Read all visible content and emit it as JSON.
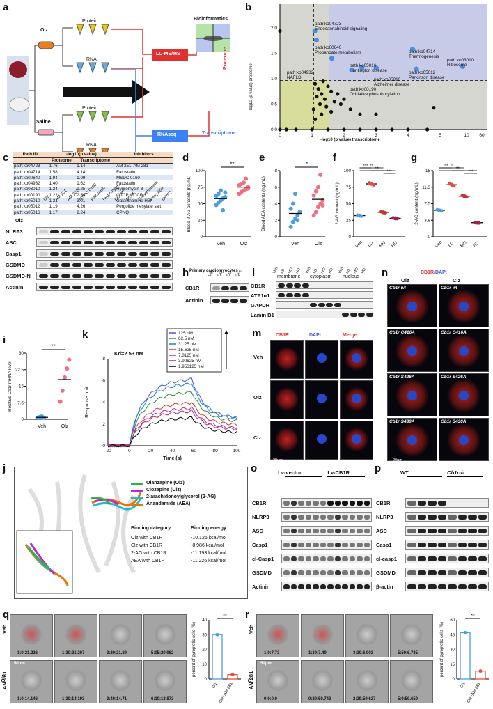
{
  "panels": {
    "a": {
      "letter": "a",
      "olz": "Olz",
      "saline": "Saline",
      "protein": "Protein",
      "rna": "RNA",
      "bioinfo": "Bioinformatics",
      "lcms": "LC-MS/MS",
      "rnaseq": "RNAseq",
      "proteome": "Proteome",
      "transcriptome": "Transcriptome"
    },
    "b": {
      "letter": "b",
      "ylabel": "-log10 (p value) proteome",
      "xlabel": "-log10 (p value) transcriptome",
      "xticks": [
        "0",
        "1",
        "2",
        "3",
        "4",
        "5",
        "10",
        "60"
      ],
      "yticks": [
        "0.0",
        "0.5",
        "1.0",
        "1.5",
        "2.0"
      ],
      "annotations": [
        "path:ko04723\nEndocannabinoid signaling",
        "path:ko00640\nPropanoate metabolism",
        "path:ko05016\nHuntington disease",
        "path:ko04932\nNAFLD",
        "path:ko00190\nOxidative phosphorylation",
        "path:ko05010\nAlzheimer disease",
        "path:ko04714\nThermogenesis",
        "path:ko05012\nParkinson disease",
        "path:ko03010\nRibosome"
      ]
    },
    "c": {
      "letter": "c",
      "headers": [
        "Path ID",
        "-log10(p value)",
        "Inhibitors"
      ],
      "subheaders": [
        "Proteome",
        "Transcriptome"
      ],
      "rows": [
        [
          "path:ko04723",
          "1.76",
          "1.14",
          "AM 251, AM 281"
        ],
        [
          "path:ko04714",
          "1.58",
          "4.14",
          "Fatostatin"
        ],
        [
          "path:ko00640",
          "1.94",
          "1.09",
          "MSDC 0160"
        ],
        [
          "path:ko04932",
          "1.40",
          "1.62",
          "Fatostatin"
        ],
        [
          "path:ko03010",
          "1.24",
          "9.25",
          "Hygromycin B"
        ],
        [
          "path:ko00190",
          "1.22",
          "2.56",
          "CCCP; FCCP"
        ],
        [
          "path:ko05010",
          "1.21",
          "3.01",
          "Galanthamine HBr"
        ],
        [
          "path:ko05012",
          "1.19",
          "4.26",
          "Pergolide mesylate salt"
        ],
        [
          "path:ko05016",
          "1.17",
          "2.24",
          "CPNQ"
        ]
      ],
      "blot_cols": [
        "Olz",
        "AM 251",
        "AM 281",
        "MSDC 0160",
        "Fatostatin",
        "Hygromycin",
        "CCCP",
        "FCCP",
        "Galanthamine",
        "Pergolide",
        "CPNQ"
      ],
      "blot_rows": [
        "NLRP3",
        "ASC",
        "Casp1",
        "GSDMD",
        "GSDMD-N",
        "Actinin"
      ],
      "olz_label": "Olz"
    },
    "d": {
      "letter": "d",
      "ylabel": "Blood 2-AG contents (ng.mL)",
      "sig": "**",
      "xcats": [
        "Veh",
        "Olz"
      ]
    },
    "e": {
      "letter": "e",
      "ylabel": "Blood AEA contents (ng.mL)",
      "sig": "*",
      "xcats": [
        "Veh",
        "Olz"
      ]
    },
    "f": {
      "letter": "f",
      "ylabel": "2-AG content (ng/mL)",
      "xcats": [
        "Veh",
        "LD",
        "MD",
        "HD"
      ]
    },
    "g": {
      "letter": "g",
      "ylabel": "2-AG content (ng/mL)",
      "xcats": [
        "Veh",
        "LD",
        "MD",
        "HD"
      ]
    },
    "h": {
      "letter": "h",
      "title": "Primary cardiomyocytes",
      "cols": [
        "Veh",
        "Olz",
        "Clz",
        "Que"
      ],
      "rows": [
        "CB1R",
        "Actinin"
      ]
    },
    "i": {
      "letter": "i",
      "ylabel": "Relative Cb1r mRNA level",
      "sig": "**",
      "xcats": [
        "Veh",
        "Olz"
      ]
    },
    "k": {
      "letter": "k",
      "kd": "Kd=2.53 nM",
      "xlabel": "Time (s)",
      "ylabel": "Response unit",
      "legend": [
        "125 nM",
        "62.5 nM",
        "31.25 nM",
        "15.625 nM",
        "7.8125 nM",
        "3.90625 nM",
        "1.953125 nM"
      ],
      "colors": [
        "#3b5bdb",
        "#2b8a3e",
        "#1c7ed6",
        "#e03131",
        "#9c36b5",
        "#c2255c",
        "#000000"
      ],
      "xticks": [
        "-20",
        "0",
        "20",
        "40",
        "60",
        "80",
        "100"
      ],
      "yticks": [
        "0",
        "2",
        "4",
        "6",
        "8"
      ]
    },
    "l": {
      "letter": "l",
      "groups": [
        "membrane",
        "cytoplasm",
        "nucleus"
      ],
      "rows": [
        "CB1R",
        "ATP1α1",
        "GAPDH",
        "Lamin B1"
      ],
      "cols": [
        "Veh",
        "LD",
        "MD",
        "HD"
      ]
    },
    "m": {
      "letter": "m",
      "cols": [
        "CB1R",
        "DAPI",
        "Merge"
      ],
      "rows": [
        "Veh",
        "Olz",
        "Clz"
      ],
      "scale": "20μm"
    },
    "n": {
      "letter": "n",
      "title_a": "CB1R",
      "title_b": "/DAPI",
      "cols": [
        "Olz",
        "Clz"
      ],
      "rows": [
        "Cb1r wt",
        "Cb1r C416A",
        "Cb1r S426A",
        "Cb1r S430A"
      ],
      "scale": "20μm"
    },
    "j": {
      "letter": "j",
      "legend": [
        {
          "name": "Olanzapine (Olz)",
          "color": "#2fb344"
        },
        {
          "name": "Clozapine (Clz)",
          "color": "#c026d3"
        },
        {
          "name": "2-arachidonoylglycerol (2-AG)",
          "color": "#22b8cf"
        },
        {
          "name": "Anandamide (AEA)",
          "color": "#e67700"
        }
      ],
      "table_headers": [
        "Binding category",
        "Binding energy"
      ],
      "table_rows": [
        [
          "Olz with CB1R",
          "-10.126 kcal/mol"
        ],
        [
          "Clz with CB1R",
          "-8.986 kcal/mol"
        ],
        [
          "2-AG with CB1R",
          "-11.193 kcal/mol"
        ],
        [
          "AEA with CB1R",
          "-11.226 kcal/mol"
        ]
      ]
    },
    "o": {
      "letter": "o",
      "groups": [
        "Lv-vector",
        "Lv-CB1R"
      ],
      "rows": [
        "CB1R",
        "NLRP3",
        "ASC",
        "Casp1",
        "cl-Casp1",
        "GSDMD",
        "Actinin"
      ]
    },
    "p": {
      "letter": "p",
      "groups": [
        "WT",
        "Cb1r-/-"
      ],
      "rows": [
        "CB1R",
        "NLRP3",
        "ASC",
        "Casp1",
        "cl-casp1",
        "GSDMD",
        "β-actin"
      ]
    },
    "q": {
      "letter": "q",
      "rows": [
        "Veh",
        "AM 281"
      ],
      "side": "Olz",
      "times_top": [
        "1:0:21.226",
        "1:30:21.207",
        "3:20:21.89",
        "5:05:20.962"
      ],
      "times_bot": [
        "1:0:14.146",
        "1:30:14.193",
        "3:40:14.71",
        "6:10:13.873"
      ],
      "scale": "50μm",
      "ylabel": "percent of pyroptotic cells (%)",
      "sig": "**",
      "xcats": [
        "Olz",
        "Olz+AM 281"
      ]
    },
    "r": {
      "letter": "r",
      "rows": [
        "Veh",
        "AM 281"
      ],
      "side": "Clz",
      "times_top": [
        "1:0:7.73",
        "1:30:7.49",
        "3:20:6.903",
        "5:50:6.735"
      ],
      "times_bot": [
        "0:0:0.0",
        "0:29:59.743",
        "2:29:59.627",
        "5:9:59.659"
      ],
      "scale": "50μm",
      "ylabel": "percent of pyroptotic cells (%)",
      "sig": "**",
      "xcats": [
        "Clz",
        "Clz+AM 281"
      ]
    }
  },
  "chart_data": [
    {
      "type": "scatter",
      "title": "",
      "xlabel": "-log10 (p value) transcriptome",
      "ylabel": "-log10 (p value) proteome",
      "points": [
        {
          "x": 1.14,
          "y": 1.76
        },
        {
          "x": 4.14,
          "y": 1.58
        },
        {
          "x": 1.09,
          "y": 1.94
        },
        {
          "x": 1.62,
          "y": 1.4
        },
        {
          "x": 9.25,
          "y": 1.24
        },
        {
          "x": 2.56,
          "y": 1.22
        },
        {
          "x": 3.01,
          "y": 1.21
        },
        {
          "x": 4.26,
          "y": 1.19
        },
        {
          "x": 2.24,
          "y": 1.17
        }
      ]
    },
    {
      "type": "scatter",
      "title": "",
      "ylabel": "Blood 2-AG contents (ng.mL)",
      "categories": [
        "Veh",
        "Olz"
      ],
      "ylim": [
        0,
        100
      ],
      "series": [
        {
          "values": [
            48,
            52,
            55,
            58,
            60,
            62,
            65,
            70,
            40,
            67
          ]
        },
        {
          "values": [
            65,
            68,
            70,
            72,
            75,
            78,
            80,
            82,
            88,
            73
          ]
        }
      ]
    },
    {
      "type": "scatter",
      "title": "",
      "ylabel": "Blood AEA contents (ng.mL)",
      "categories": [
        "Veh",
        "Olz"
      ],
      "ylim": [
        0,
        8
      ],
      "series": [
        {
          "values": [
            1.2,
            1.8,
            2.2,
            2.6,
            3.0,
            3.4,
            4.0,
            5.2,
            2.0
          ]
        },
        {
          "values": [
            2.6,
            3.0,
            3.6,
            4.0,
            4.4,
            5.0,
            5.5,
            6.0,
            7.5,
            3.8
          ]
        }
      ]
    },
    {
      "type": "bar",
      "title": "",
      "ylabel": "2-AG content (ng/mL)",
      "categories": [
        "Veh",
        "LD",
        "MD",
        "HD"
      ],
      "ylim": [
        0,
        100
      ],
      "values": [
        32,
        80,
        37,
        28
      ]
    },
    {
      "type": "bar",
      "title": "",
      "ylabel": "2-AG content (ng/mL)",
      "categories": [
        "Veh",
        "LD",
        "MD",
        "HD"
      ],
      "ylim": [
        0,
        15
      ],
      "values": [
        6.0,
        11.8,
        9.2,
        3.2
      ]
    },
    {
      "type": "scatter",
      "title": "",
      "ylabel": "Relative Cb1r mRNA level",
      "categories": [
        "Veh",
        "Olz"
      ],
      "ylim": [
        0,
        30
      ],
      "series": [
        {
          "values": [
            0.5,
            1.0,
            1.3,
            0.7
          ]
        },
        {
          "values": [
            8,
            13,
            19,
            23,
            27
          ]
        }
      ]
    },
    {
      "type": "line",
      "title": "",
      "xlabel": "Time (s)",
      "ylabel": "Response unit",
      "ylim": [
        0,
        8
      ],
      "series": [
        {
          "name": "125 nM",
          "values": [
            0,
            5.9,
            6.2,
            2.5
          ]
        },
        {
          "name": "62.5 nM",
          "values": [
            0,
            4.8,
            5.0,
            2.2
          ]
        },
        {
          "name": "31.25 nM",
          "values": [
            0,
            5.5,
            5.8,
            2.4
          ]
        },
        {
          "name": "15.625 nM",
          "values": [
            0,
            3.6,
            4.0,
            1.9
          ]
        },
        {
          "name": "7.8125 nM",
          "values": [
            0,
            3.2,
            3.5,
            1.6
          ]
        },
        {
          "name": "3.90625 nM",
          "values": [
            0,
            3.0,
            3.2,
            1.5
          ]
        },
        {
          "name": "1.953125 nM",
          "values": [
            0,
            2.2,
            2.6,
            1.2
          ]
        }
      ]
    },
    {
      "type": "bar",
      "title": "",
      "ylabel": "percent of pyroptotic cells (%)",
      "categories": [
        "Olz",
        "Olz+AM 281"
      ],
      "ylim": [
        0,
        40
      ],
      "values": [
        30,
        3
      ]
    },
    {
      "type": "bar",
      "title": "",
      "ylabel": "percent of pyroptotic cells (%)",
      "categories": [
        "Clz",
        "Clz+AM 281"
      ],
      "ylim": [
        0,
        60
      ],
      "values": [
        47,
        8
      ]
    }
  ]
}
